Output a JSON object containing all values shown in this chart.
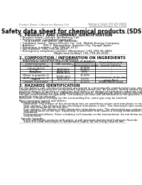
{
  "header_left": "Product Name: Lithium Ion Battery Cell",
  "header_right_line1": "Substance Control: SDS-049-008/10",
  "header_right_line2": "Established / Revision: Dec.7.2016",
  "title": "Safety data sheet for chemical products (SDS)",
  "section1_title": "1. PRODUCT AND COMPANY IDENTIFICATION",
  "section1_items": [
    "Product name: Lithium Ion Battery Cell",
    "Product code: Cylindrical-type cell",
    "     (e.g.18650, 26F18650, 28F B8650A)",
    "Company name:  Sanyo Electric Co., Ltd., Mobile Energy Company",
    "Address:         200-1  Kannondani, Sumoto-City, Hyogo, Japan",
    "Telephone number:  +81-799-26-4111",
    "Fax number: +81-799-26-4129",
    "Emergency telephone number (Weekdays) +81-799-26-2862",
    "                                      (Night and holiday) +81-799-26-4126"
  ],
  "section2_title": "2. COMPOSITION / INFORMATION ON INGREDIENTS",
  "section2_sub1": "Substance or preparation: Preparation",
  "section2_sub2": "Information about the chemical nature of product:",
  "table_headers": [
    "Chemical name",
    "CAS number",
    "Concentration /\nConcentration range",
    "Classification and\nhazard labeling"
  ],
  "table_rows": [
    [
      "Lithium cobalt oxide\n(LiMn/CoNiO2)",
      "-",
      "30-50%",
      "-"
    ],
    [
      "Iron",
      "7439-89-6",
      "15-25%",
      "-"
    ],
    [
      "Aluminum",
      "7429-90-5",
      "2-6%",
      "-"
    ],
    [
      "Graphite\n(Metal in graphite-1)\n(Al-Mo in graphite-1)",
      "17439-42-5\n17439-44-0",
      "10-20%",
      "-"
    ],
    [
      "Copper",
      "7440-50-8",
      "5-15%",
      "Sensitization of the skin\ngroup No.2"
    ],
    [
      "Organic electrolyte",
      "-",
      "10-20%",
      "Inflammable liquid"
    ]
  ],
  "section3_title": "3. HAZARDS IDENTIFICATION",
  "section3_text": [
    "For the battery cell, chemical materials are stored in a hermetically sealed metal case, designed to withstand",
    "temperatures and pressures encountered during normal use. As a result, during normal use, there is no",
    "physical danger of ignition or explosion and there is no danger of hazardous materials leakage.",
    "However, if exposed to a fire, added mechanical shock, decomposed, when electric element safety measures,",
    "the gas inside cannot be operated. The battery cell case will be breached or fire patterns, hazardous",
    "materials may be released.",
    "Moreover, if heated strongly by the surrounding fire, some gas may be emitted.",
    "",
    "Most important hazard and effects:",
    "  Human health effects:",
    "     Inhalation: The release of the electrolyte has an anesthesia action and stimulates in respiratory tract.",
    "     Skin contact: The release of the electrolyte stimulates a skin. The electrolyte skin contact causes a",
    "     sore and stimulation on the skin.",
    "     Eye contact: The release of the electrolyte stimulates eyes. The electrolyte eye contact causes a sore",
    "     and stimulation on the eye. Especially, a substance that causes a strong inflammation of the eyes is",
    "     contained.",
    "     Environmental effects: Since a battery cell remains in the environment, do not throw out it into the",
    "     environment.",
    "",
    "  Specific hazards:",
    "     If the electrolyte contacts with water, it will generate detrimental hydrogen fluoride.",
    "     Since the used electrolyte is inflammable liquid, do not bring close to fire."
  ],
  "bg_color": "#ffffff",
  "text_color": "#000000",
  "line_color": "#888888",
  "table_line_color": "#000000",
  "header_gray": "#cccccc",
  "small_fs": 2.8,
  "tiny_fs": 2.5,
  "title_fs": 5.5,
  "section_fs": 3.8,
  "body_fs": 3.0,
  "table_fs": 2.6
}
